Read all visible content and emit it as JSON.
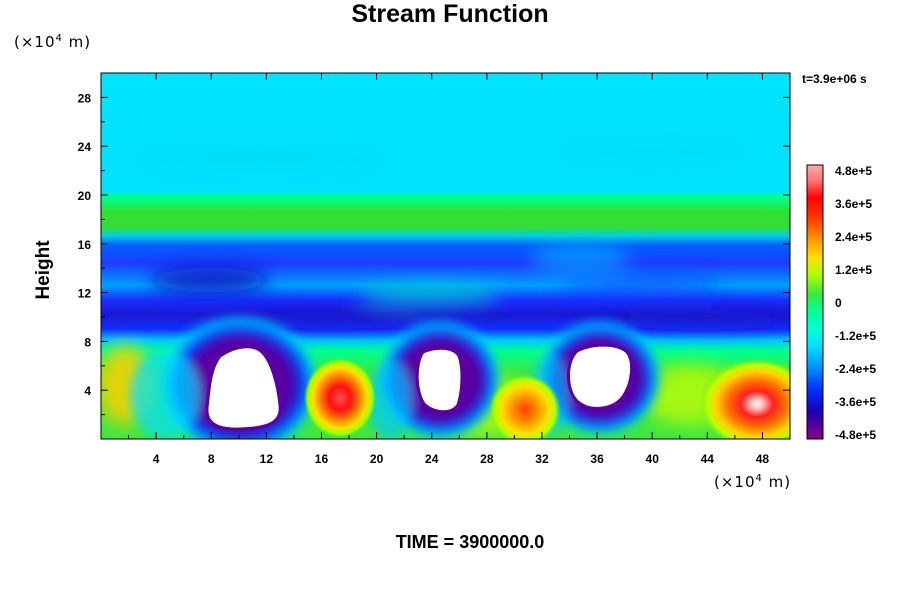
{
  "chart_data": {
    "type": "heatmap",
    "title": "Stream Function",
    "ylabel": "Height",
    "y_unit": "(×10⁴ m)",
    "x_unit": "(×10⁴ m)",
    "time_label": "t=3.9e+06 s",
    "footer": "TIME = 3900000.0",
    "xlim": [
      0,
      50
    ],
    "ylim": [
      0,
      30
    ],
    "x_ticks": [
      "4",
      "8",
      "12",
      "16",
      "20",
      "24",
      "28",
      "32",
      "36",
      "40",
      "44",
      "48"
    ],
    "x_tick_values": [
      4,
      8,
      12,
      16,
      20,
      24,
      28,
      32,
      36,
      40,
      44,
      48
    ],
    "y_ticks": [
      "4",
      "8",
      "12",
      "16",
      "20",
      "24",
      "28"
    ],
    "y_tick_values": [
      4,
      8,
      12,
      16,
      20,
      24,
      28
    ],
    "colorbar": {
      "labels": [
        "4.8e+5",
        "3.6e+5",
        "2.4e+5",
        "1.2e+5",
        "0",
        "-1.2e+5",
        "-2.4e+5",
        "-3.6e+5",
        "-4.8e+5"
      ],
      "values": [
        480000,
        360000,
        240000,
        120000,
        0,
        -120000,
        -240000,
        -360000,
        -480000
      ],
      "range": [
        -480000,
        480000
      ],
      "colors": [
        "#8b008b",
        "#1a00c0",
        "#0028ff",
        "#00b4ff",
        "#00e8ff",
        "#00ff9a",
        "#2ee02e",
        "#b4ff00",
        "#ffd000",
        "#ff5500",
        "#ff0000",
        "#ff9090"
      ]
    },
    "features": [
      {
        "kind": "band",
        "y_range": [
          17,
          20
        ],
        "value": 30000
      },
      {
        "kind": "band",
        "y_range": [
          9,
          16
        ],
        "value": -330000
      },
      {
        "kind": "band",
        "y_range": [
          20,
          30
        ],
        "value": -100000
      },
      {
        "kind": "clipped_low",
        "center": [
          11,
          4.3
        ]
      },
      {
        "kind": "clipped_low",
        "center": [
          25,
          5.2
        ]
      },
      {
        "kind": "clipped_low",
        "center": [
          38.5,
          5.2
        ]
      },
      {
        "kind": "high",
        "center": [
          17.8,
          3.3
        ],
        "value": 420000
      },
      {
        "kind": "high",
        "center": [
          31.8,
          2.3
        ],
        "value": 280000
      },
      {
        "kind": "high",
        "center": [
          48.2,
          2.7
        ],
        "value": 480000
      }
    ]
  }
}
